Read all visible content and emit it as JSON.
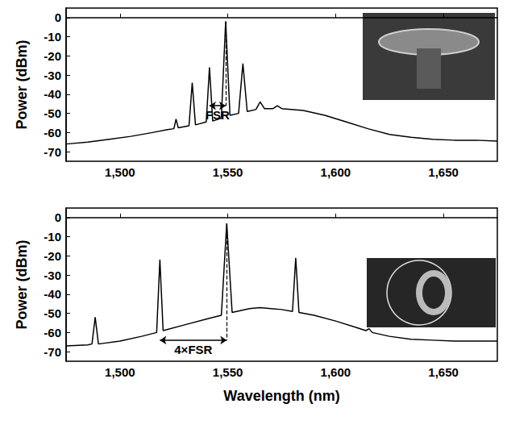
{
  "chart_data": [
    {
      "type": "line",
      "y_label": "Power (dBm)",
      "grid": false,
      "color": "#000000",
      "xlim": [
        1475,
        1675
      ],
      "xticks": [
        1500,
        1550,
        1600,
        1650
      ],
      "ylim": [
        -75,
        5
      ],
      "yticks": [
        -70,
        -60,
        -50,
        -40,
        -30,
        -20,
        -10,
        0
      ],
      "x": [
        1475,
        1485,
        1495,
        1505,
        1515,
        1522,
        1525,
        1526,
        1527,
        1532,
        1533.5,
        1535,
        1540,
        1541.5,
        1543,
        1547,
        1549,
        1551,
        1555,
        1557,
        1559,
        1563,
        1565,
        1567,
        1571,
        1573,
        1575,
        1585,
        1595,
        1605,
        1615,
        1625,
        1635,
        1645,
        1655,
        1665,
        1675
      ],
      "values": [
        -66,
        -65,
        -63.5,
        -62,
        -60,
        -58.5,
        -58,
        -53,
        -57.5,
        -56.5,
        -34,
        -56,
        -54.5,
        -26,
        -54,
        -52.5,
        -2,
        -51,
        -50,
        -24,
        -49,
        -48,
        -44,
        -47.5,
        -47.5,
        -46,
        -47.5,
        -48.5,
        -51,
        -54.5,
        -58,
        -61,
        -62.5,
        -63.5,
        -64,
        -64,
        -64.5
      ],
      "annotations": [
        {
          "text": "FSR",
          "x": [
            1541.5,
            1549
          ],
          "y": -46
        }
      ]
    },
    {
      "type": "line",
      "y_label": "Power (dBm)",
      "x_label": "Wavelength (nm)",
      "grid": false,
      "color": "#000000",
      "xlim": [
        1475,
        1675
      ],
      "xticks": [
        1500,
        1550,
        1600,
        1650
      ],
      "ylim": [
        -75,
        5
      ],
      "yticks": [
        -70,
        -60,
        -50,
        -40,
        -30,
        -20,
        -10,
        0
      ],
      "x": [
        1475,
        1485,
        1487,
        1488.5,
        1490,
        1500,
        1510,
        1517,
        1518.5,
        1520,
        1530,
        1540,
        1547,
        1549.5,
        1552,
        1560,
        1565,
        1570,
        1575,
        1580,
        1581.5,
        1583,
        1590,
        1600,
        1610,
        1614,
        1615.5,
        1617,
        1625,
        1635,
        1645,
        1655,
        1665,
        1675
      ],
      "values": [
        -67,
        -66.5,
        -66,
        -52,
        -66,
        -64.5,
        -62,
        -60,
        -22,
        -59,
        -56,
        -53,
        -51,
        -3,
        -49.5,
        -47.5,
        -47,
        -47.5,
        -48,
        -49,
        -21,
        -49.5,
        -51,
        -54,
        -57.5,
        -59,
        -58,
        -60,
        -62,
        -63.5,
        -64,
        -64.5,
        -64.5,
        -64.5
      ],
      "annotations": [
        {
          "text": "4×FSR",
          "x": [
            1518.5,
            1549.5
          ],
          "y": -64
        }
      ]
    }
  ]
}
